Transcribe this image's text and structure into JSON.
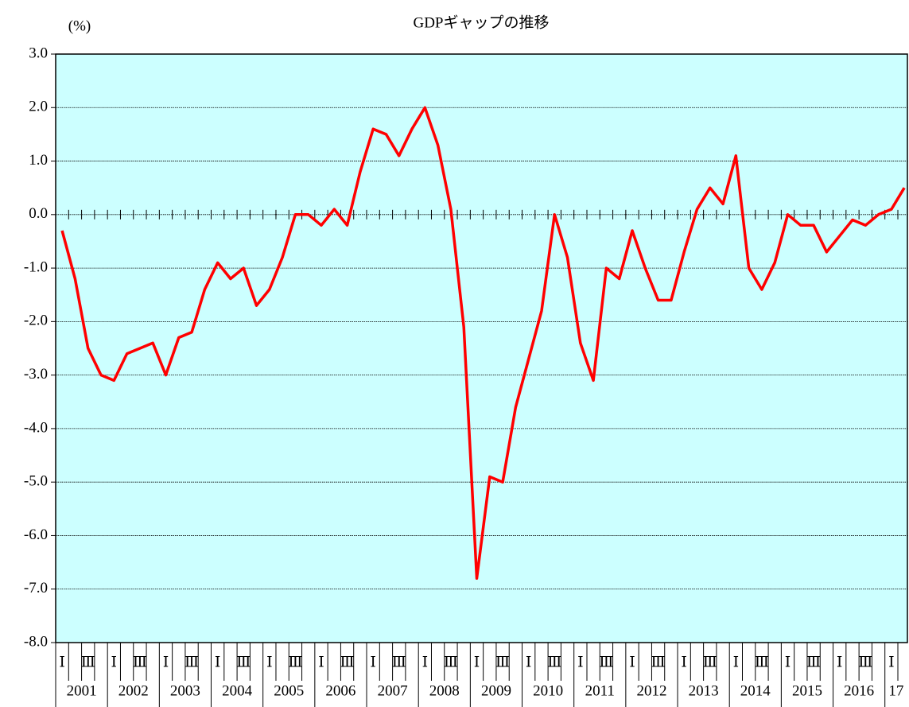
{
  "chart_data": {
    "type": "line",
    "title": "GDPギャップの推移",
    "y_label": "(%)",
    "categories": [
      "Ⅰ",
      null,
      "Ⅲ",
      null,
      "Ⅰ",
      null,
      "Ⅲ",
      null,
      "Ⅰ",
      null,
      "Ⅲ",
      null,
      "Ⅰ",
      null,
      "Ⅲ",
      null,
      "Ⅰ",
      null,
      "Ⅲ",
      null,
      "Ⅰ",
      null,
      "Ⅲ",
      null,
      "Ⅰ",
      null,
      "Ⅲ",
      null,
      "Ⅰ",
      null,
      "Ⅲ",
      null,
      "Ⅰ",
      null,
      "Ⅲ",
      null,
      "Ⅰ",
      null,
      "Ⅲ",
      null,
      "Ⅰ",
      null,
      "Ⅲ",
      null,
      "Ⅰ",
      null,
      "Ⅲ",
      null,
      "Ⅰ",
      null,
      "Ⅲ",
      null,
      "Ⅰ",
      null,
      "Ⅲ",
      null,
      "Ⅰ",
      null,
      "Ⅲ",
      null,
      "Ⅰ",
      null,
      "Ⅲ",
      null,
      "Ⅰ",
      null
    ],
    "years": [
      "2001",
      "2002",
      "2003",
      "2004",
      "2005",
      "2006",
      "2007",
      "2008",
      "2009",
      "2010",
      "2011",
      "2012",
      "2013",
      "2014",
      "2015",
      "2016",
      "17"
    ],
    "series": [
      {
        "name": "GDPギャップ",
        "color": "#ff0000",
        "values": [
          -0.3,
          -1.2,
          -2.5,
          -3.0,
          -3.1,
          -2.6,
          -2.5,
          -2.4,
          -3.0,
          -2.3,
          -2.2,
          -1.4,
          -0.9,
          -1.2,
          -1.0,
          -1.7,
          -1.4,
          -0.8,
          0.0,
          0.0,
          -0.2,
          0.1,
          -0.2,
          0.8,
          1.6,
          1.5,
          1.1,
          1.6,
          2.0,
          1.3,
          0.1,
          -2.1,
          -6.8,
          -4.9,
          -5.0,
          -3.6,
          -2.7,
          -1.8,
          0.0,
          -0.8,
          -2.4,
          -3.1,
          -1.0,
          -1.2,
          -0.3,
          -1.0,
          -1.6,
          -1.6,
          -0.7,
          0.1,
          0.5,
          0.2,
          1.1,
          -1.0,
          -1.4,
          -0.9,
          0.0,
          -0.2,
          -0.2,
          -0.7,
          -0.4,
          -0.1,
          -0.2,
          0.0,
          0.1,
          0.5
        ]
      }
    ],
    "ylim": [
      -8,
      3
    ],
    "yticks": [
      {
        "value": -8,
        "label": "-8.0"
      },
      {
        "value": -7,
        "label": "-7.0"
      },
      {
        "value": -6,
        "label": "-6.0"
      },
      {
        "value": -5,
        "label": "-5.0"
      },
      {
        "value": -4,
        "label": "-4.0"
      },
      {
        "value": -3,
        "label": "-3.0"
      },
      {
        "value": -2,
        "label": "-2.0"
      },
      {
        "value": -1,
        "label": "-1.0"
      },
      {
        "value": 0,
        "label": "0.0"
      },
      {
        "value": 1,
        "label": "1.0"
      },
      {
        "value": 2,
        "label": "2.0"
      },
      {
        "value": 3,
        "label": "3.0"
      }
    ],
    "grid": true,
    "background": "#ccffff"
  }
}
